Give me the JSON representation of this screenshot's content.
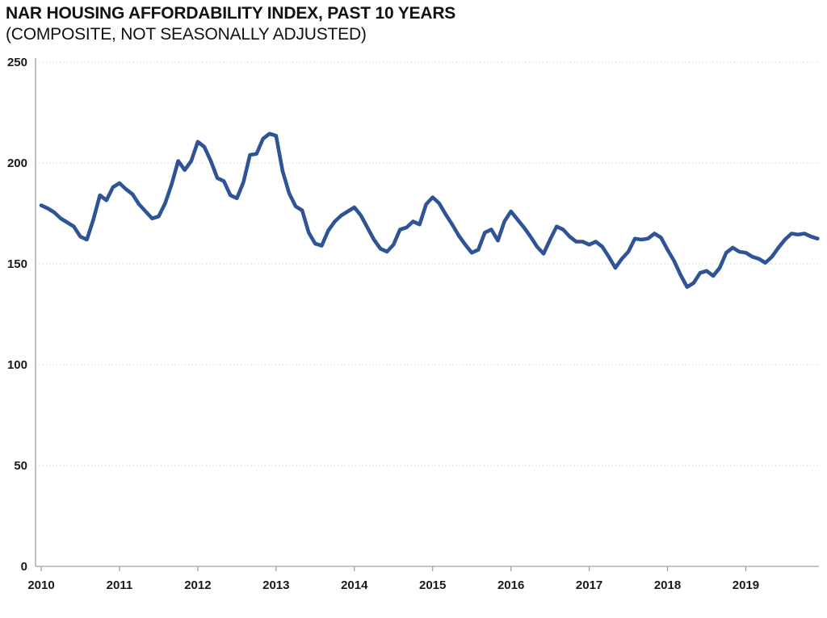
{
  "header": {
    "title": "NAR HOUSING AFFORDABILITY INDEX, PAST 10 YEARS",
    "subtitle": "(COMPOSITE, NOT SEASONALLY ADJUSTED)"
  },
  "chart_data": {
    "type": "line",
    "title": "NAR HOUSING AFFORDABILITY INDEX, PAST 10 YEARS",
    "subtitle": "(COMPOSITE, NOT SEASONALLY ADJUSTED)",
    "frequency": "monthly",
    "start_month": "2010-01",
    "end_month": "2019-12",
    "x_tick_labels": [
      "2010",
      "2011",
      "2012",
      "2013",
      "2014",
      "2015",
      "2016",
      "2017",
      "2018",
      "2019"
    ],
    "y_ticks": [
      0,
      50,
      100,
      150,
      200,
      250
    ],
    "ylim": [
      0,
      250
    ],
    "grid": "horizontal-dotted",
    "legend": "none",
    "series": [
      {
        "name": "Housing Affordability Index (Composite, NSA)",
        "values": [
          179.0,
          177.5,
          175.5,
          172.5,
          170.5,
          168.5,
          163.5,
          162.0,
          172.0,
          184.0,
          181.5,
          188.0,
          190.0,
          187.0,
          184.5,
          179.5,
          176.0,
          172.5,
          173.5,
          180.0,
          189.5,
          201.0,
          196.5,
          201.0,
          210.5,
          208.0,
          201.0,
          192.5,
          191.0,
          184.0,
          182.5,
          190.5,
          204.0,
          204.5,
          212.0,
          214.5,
          213.5,
          196.0,
          185.0,
          178.5,
          176.5,
          165.5,
          160.0,
          159.0,
          166.5,
          171.0,
          174.0,
          176.0,
          178.0,
          174.0,
          168.0,
          162.0,
          157.5,
          156.0,
          159.5,
          167.0,
          168.0,
          171.0,
          169.5,
          179.5,
          183.0,
          180.0,
          174.5,
          169.5,
          164.0,
          159.5,
          155.5,
          157.0,
          165.5,
          167.0,
          161.5,
          171.0,
          176.0,
          172.0,
          168.0,
          163.5,
          158.5,
          155.0,
          162.0,
          168.5,
          167.0,
          163.5,
          161.0,
          161.0,
          159.5,
          161.0,
          158.5,
          153.5,
          148.0,
          152.5,
          156.0,
          162.5,
          162.0,
          162.5,
          165.0,
          163.0,
          157.0,
          151.5,
          144.5,
          138.5,
          140.5,
          145.5,
          146.5,
          144.0,
          148.0,
          155.5,
          158.0,
          156.0,
          155.5,
          153.5,
          152.5,
          150.5,
          153.5,
          158.0,
          162.0,
          165.0,
          164.5,
          165.0,
          163.5,
          162.5
        ]
      }
    ],
    "colors": {
      "line": "#2F5496",
      "gridline": "#D9D9D9",
      "axis": "#A0A0A0",
      "label": "#1A1A1A",
      "background": "#FFFFFF"
    }
  }
}
